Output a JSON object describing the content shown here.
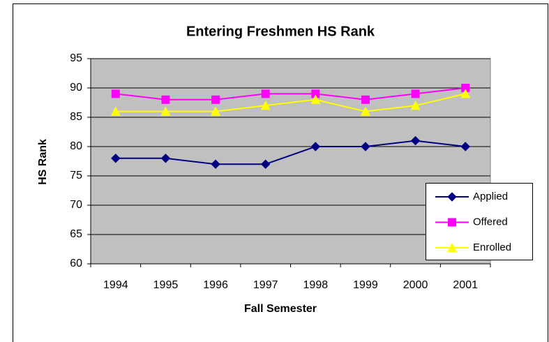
{
  "chart_data": {
    "type": "line",
    "title": "Entering Freshmen HS Rank",
    "x_label": "Fall Semester",
    "y_label": "HS Rank",
    "categories": [
      "1994",
      "1995",
      "1996",
      "1997",
      "1998",
      "1999",
      "2000",
      "2001"
    ],
    "series": [
      {
        "name": "Applied",
        "color": "#000080",
        "marker": "diamond",
        "values": [
          78,
          78,
          77,
          77,
          80,
          80,
          81,
          80
        ]
      },
      {
        "name": "Offered",
        "color": "#ff00ff",
        "marker": "square",
        "values": [
          89,
          88,
          88,
          89,
          89,
          88,
          89,
          90
        ]
      },
      {
        "name": "Enrolled",
        "color": "#ffff00",
        "marker": "triangle",
        "values": [
          86,
          86,
          86,
          87,
          88,
          86,
          87,
          89
        ]
      }
    ],
    "ylim": [
      60,
      95
    ],
    "yticks": [
      60,
      65,
      70,
      75,
      80,
      85,
      90,
      95
    ],
    "grid": true,
    "plot_background": "#c0c0c0",
    "legend": "lower right"
  }
}
